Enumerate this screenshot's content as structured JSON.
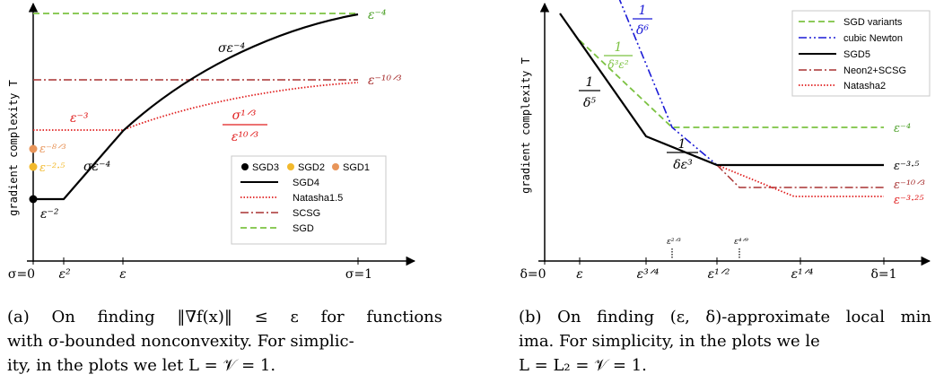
{
  "chart_data": [
    {
      "type": "line",
      "ylabel": "gradient complexity T",
      "x_ticks": [
        "σ=0",
        "ε²",
        "ε",
        "σ=1"
      ],
      "legend": {
        "placement": "bottom-right",
        "dot_entries": [
          {
            "name": "SGD3",
            "color": "#000000"
          },
          {
            "name": "SGD2",
            "color": "#F2B92C"
          },
          {
            "name": "SGD1",
            "color": "#E8955A"
          }
        ],
        "line_entries": [
          {
            "name": "SGD4",
            "color": "#000000",
            "style": "solid"
          },
          {
            "name": "Natasha1.5",
            "color": "#E01E1E",
            "style": "dotted"
          },
          {
            "name": "SCSG",
            "color": "#A83232",
            "style": "dashdot"
          },
          {
            "name": "SGD",
            "color": "#7CC242",
            "style": "dashed"
          }
        ]
      },
      "annotations": [
        {
          "text": "ε⁻⁴",
          "color": "#4CA028"
        },
        {
          "text": "σε⁻⁴",
          "color": "#000000"
        },
        {
          "text": "ε⁻¹⁰ᐟ³",
          "color": "#A83232"
        },
        {
          "text": "ε⁻³",
          "color": "#E01E1E"
        },
        {
          "text": "σ¹ᐟ³",
          "color": "#E01E1E"
        },
        {
          "text": "ε¹⁰ᐟ³",
          "color": "#E01E1E"
        },
        {
          "text": "ε⁻⁸ᐟ³",
          "color": "#E8955A"
        },
        {
          "text": "ε⁻²·⁵",
          "color": "#F2B92C"
        },
        {
          "text": "σε⁻⁴",
          "color": "#000000"
        },
        {
          "text": "ε⁻²",
          "color": "#000000"
        }
      ]
    },
    {
      "type": "line",
      "ylabel": "gradient complexity T",
      "x_ticks": [
        "δ=0",
        "ε",
        "ε³ᐟ⁴",
        "ε¹ᐟ²",
        "ε¹ᐟ⁴",
        "δ=1"
      ],
      "x_marks": [
        "ε²ᐟ³",
        "ε⁴ᐟ⁹"
      ],
      "legend": {
        "placement": "top-right",
        "line_entries": [
          {
            "name": "SGD variants",
            "color": "#7CC242",
            "style": "dashed"
          },
          {
            "name": "cubic Newton",
            "color": "#1A1AD6",
            "style": "dashdotdot"
          },
          {
            "name": "SGD5",
            "color": "#000000",
            "style": "solid"
          },
          {
            "name": "Neon2+SCSG",
            "color": "#A83232",
            "style": "dashdot"
          },
          {
            "name": "Natasha2",
            "color": "#E01E1E",
            "style": "dotted"
          }
        ]
      },
      "annotations": [
        {
          "text": "1",
          "color": "#1A1AD6"
        },
        {
          "text": "δ⁶",
          "color": "#1A1AD6"
        },
        {
          "text": "1",
          "color": "#7CC242"
        },
        {
          "text": "δ³ε²",
          "color": "#7CC242"
        },
        {
          "text": "1",
          "color": "#000000"
        },
        {
          "text": "δ⁵",
          "color": "#000000"
        },
        {
          "text": "1",
          "color": "#000000"
        },
        {
          "text": "δε³",
          "color": "#000000"
        },
        {
          "text": "ε⁻⁴",
          "color": "#4CA028"
        },
        {
          "text": "ε⁻³·⁵",
          "color": "#000000"
        },
        {
          "text": "ε⁻¹⁰ᐟ³",
          "color": "#A83232"
        },
        {
          "text": "ε⁻³·²⁵",
          "color": "#E01E1E"
        }
      ]
    }
  ],
  "captions": {
    "a": [
      "(a) On finding ‖∇f(x)‖ ≤ ε for functions",
      "with σ-bounded nonconvexity. For simplic-",
      "ity, in the plots we let L = 𝒱 = 1."
    ],
    "b": [
      "(b) On finding (ε, δ)-approximate local min",
      "ima.  For simplicity, in the plots we le",
      "L = L₂ = 𝒱 = 1."
    ]
  }
}
